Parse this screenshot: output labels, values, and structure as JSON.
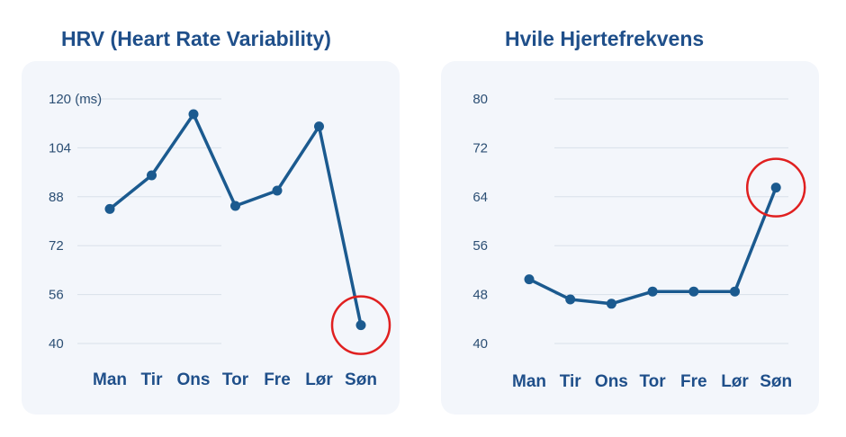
{
  "colors": {
    "title": "#1f4f8a",
    "line": "#1b5a8f",
    "highlight_circle": "#e02020",
    "panel_bg": "#f3f6fb"
  },
  "chart_data": [
    {
      "type": "line",
      "title": "HRV (Heart Rate Variability)",
      "ylabel": "",
      "xlabel": "",
      "categories": [
        "Man",
        "Tir",
        "Ons",
        "Tor",
        "Fre",
        "Lør",
        "Søn"
      ],
      "series": [
        {
          "values": [
            84,
            95,
            115,
            85,
            90,
            111,
            46
          ]
        }
      ],
      "ylim": [
        40,
        120
      ],
      "yticks": [
        {
          "value": 120,
          "label": "120 (ms)"
        },
        {
          "value": 104,
          "label": "104"
        },
        {
          "value": 88,
          "label": "88"
        },
        {
          "value": 72,
          "label": "72"
        },
        {
          "value": 56,
          "label": "56"
        },
        {
          "value": 40,
          "label": "40"
        }
      ],
      "grid": true,
      "highlight_index": 6
    },
    {
      "type": "line",
      "title": "Hvile Hjertefrekvens",
      "ylabel": "",
      "xlabel": "",
      "categories": [
        "Man",
        "Tir",
        "Ons",
        "Tor",
        "Fre",
        "Lør",
        "Søn"
      ],
      "series": [
        {
          "values": [
            50.5,
            47.2,
            46.5,
            48.5,
            48.5,
            48.5,
            65.5
          ]
        }
      ],
      "ylim": [
        40,
        80
      ],
      "yticks": [
        {
          "value": 80,
          "label": "80"
        },
        {
          "value": 72,
          "label": "72"
        },
        {
          "value": 64,
          "label": "64"
        },
        {
          "value": 56,
          "label": "56"
        },
        {
          "value": 48,
          "label": "48"
        },
        {
          "value": 40,
          "label": "40"
        }
      ],
      "grid": true,
      "highlight_index": 6
    }
  ]
}
